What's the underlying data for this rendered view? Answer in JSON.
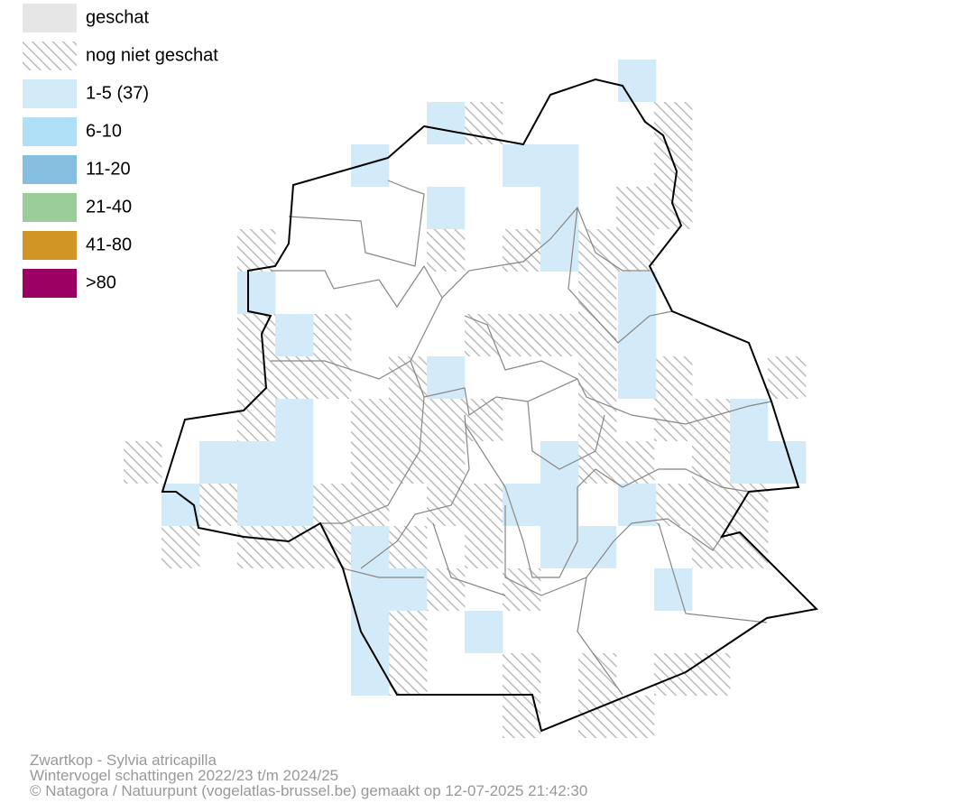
{
  "legend": {
    "items": [
      {
        "label": "geschat"
      },
      {
        "label": "nog niet geschat"
      },
      {
        "label": "1-5 (37)"
      },
      {
        "label": "6-10"
      },
      {
        "label": "11-20"
      },
      {
        "label": "21-40"
      },
      {
        "label": "41-80"
      },
      {
        "label": ">80"
      }
    ]
  },
  "footer": {
    "lines": [
      "Zwartkop - Sylvia atricapilla",
      "Wintervogel schattingen 2022/23 t/m 2024/25",
      "© Natagora / Natuurpunt (vogelatlas-brussel.be) gemaakt op 12-07-2025 21:42:30"
    ]
  }
}
